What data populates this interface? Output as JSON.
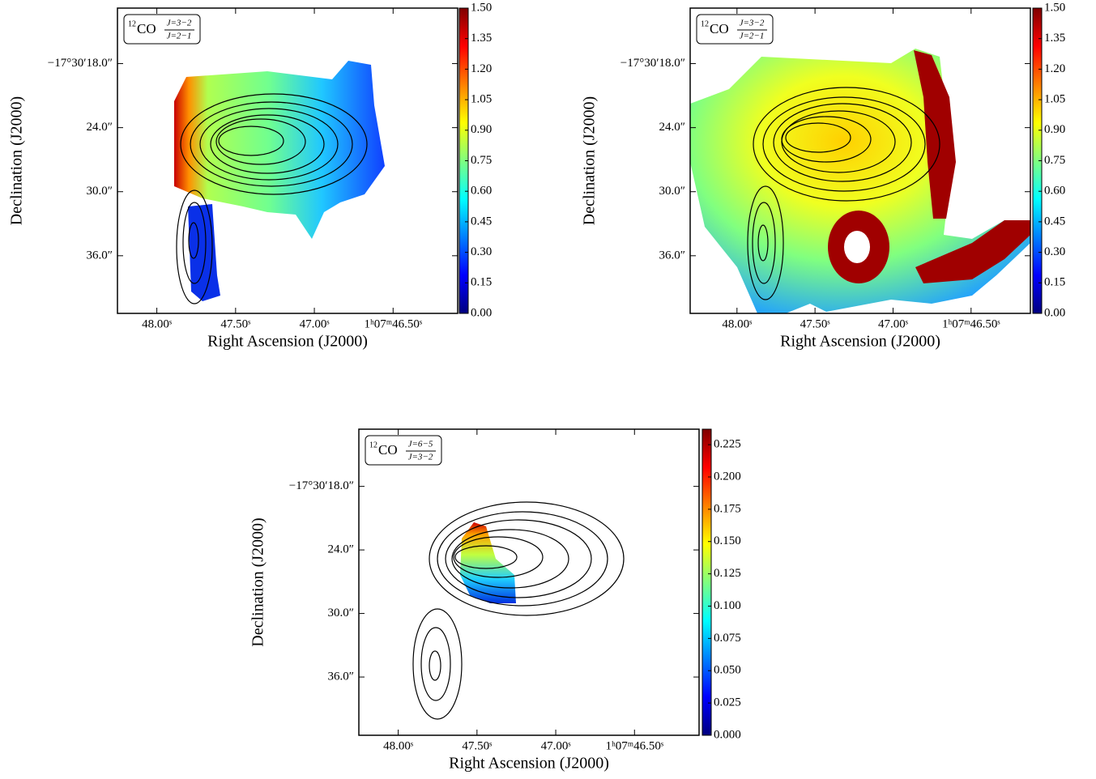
{
  "chart_data": [
    {
      "type": "heatmap",
      "legend": {
        "isotope": "12",
        "molecule": "CO",
        "numerator": "J=3−2",
        "denominator": "J=2−1"
      },
      "xlabel": "Right Ascension (J2000)",
      "ylabel": "Declination (J2000)",
      "xlim": [
        48.25,
        46.09
      ],
      "xticks": [
        {
          "value": 48.0,
          "label": "48.00ˢ"
        },
        {
          "value": 47.5,
          "label": "47.50ˢ"
        },
        {
          "value": 47.0,
          "label": "47.00ˢ"
        },
        {
          "value": 46.5,
          "label": "1ʰ07ᵐ46.50ˢ"
        }
      ],
      "ylim": [
        41.4,
        12.8
      ],
      "yticks": [
        {
          "value": 18,
          "label": "−17°30′18.0″"
        },
        {
          "value": 24,
          "label": "24.0″"
        },
        {
          "value": 30,
          "label": "30.0″"
        },
        {
          "value": 36,
          "label": "36.0″"
        }
      ],
      "colorbar": {
        "clim": [
          0,
          1.5
        ],
        "ticks": [
          {
            "value": 0,
            "label": "0.00"
          },
          0.15,
          {
            "value": 0.3,
            "label": "0.30"
          },
          0.45,
          {
            "value": 0.6,
            "label": "0.60"
          },
          0.75,
          {
            "value": 0.9,
            "label": "0.90"
          },
          1.05,
          {
            "value": 1.2,
            "label": "1.20"
          },
          1.35,
          {
            "value": 1.5,
            "label": "1.50"
          }
        ]
      }
    },
    {
      "type": "heatmap",
      "legend": {
        "isotope": "12",
        "molecule": "CO",
        "numerator": "J=3−2",
        "denominator": "J=2−1"
      },
      "xlabel": "Right Ascension (J2000)",
      "ylabel": "Declination (J2000)",
      "xlim": [
        48.3,
        46.12
      ],
      "xticks": [
        {
          "value": 48.0,
          "label": "48.00ˢ"
        },
        {
          "value": 47.5,
          "label": "47.50ˢ"
        },
        {
          "value": 47.0,
          "label": "47.00ˢ"
        },
        {
          "value": 46.5,
          "label": "1ʰ07ᵐ46.50ˢ"
        }
      ],
      "ylim": [
        41.4,
        12.8
      ],
      "yticks": [
        {
          "value": 18,
          "label": "−17°30′18.0″"
        },
        {
          "value": 24,
          "label": "24.0″"
        },
        {
          "value": 30,
          "label": "30.0″"
        },
        {
          "value": 36,
          "label": "36.0″"
        }
      ],
      "colorbar": {
        "clim": [
          0,
          1.5
        ],
        "ticks": [
          {
            "value": 0,
            "label": "0.00"
          },
          0.15,
          {
            "value": 0.3,
            "label": "0.30"
          },
          0.45,
          {
            "value": 0.6,
            "label": "0.60"
          },
          0.75,
          {
            "value": 0.9,
            "label": "0.90"
          },
          1.05,
          {
            "value": 1.2,
            "label": "1.20"
          },
          1.35,
          {
            "value": 1.5,
            "label": "1.50"
          }
        ]
      }
    },
    {
      "type": "heatmap",
      "legend": {
        "isotope": "12",
        "molecule": "CO",
        "numerator": "J=6−5",
        "denominator": "J=3−2"
      },
      "xlabel": "Right Ascension (J2000)",
      "ylabel": "Declination (J2000)",
      "xlim": [
        48.25,
        46.09
      ],
      "xticks": [
        {
          "value": 48.0,
          "label": "48.00ˢ"
        },
        {
          "value": 47.5,
          "label": "47.50ˢ"
        },
        {
          "value": 47.0,
          "label": "47.00ˢ"
        },
        {
          "value": 46.5,
          "label": "1ʰ07ᵐ46.50ˢ"
        }
      ],
      "ylim": [
        41.5,
        12.6
      ],
      "yticks": [
        {
          "value": 18,
          "label": "−17°30′18.0″"
        },
        {
          "value": 24,
          "label": "24.0″"
        },
        {
          "value": 30,
          "label": "30.0″"
        },
        {
          "value": 36,
          "label": "36.0″"
        }
      ],
      "colorbar": {
        "clim": [
          0,
          0.237
        ],
        "ticks": [
          {
            "value": 0,
            "label": "0.000"
          },
          0.025,
          {
            "value": 0.05,
            "label": "0.050"
          },
          0.075,
          {
            "value": 0.1,
            "label": "0.100"
          },
          0.125,
          {
            "value": 0.15,
            "label": "0.150"
          },
          0.175,
          {
            "value": 0.2,
            "label": "0.200"
          },
          0.225
        ]
      }
    }
  ]
}
